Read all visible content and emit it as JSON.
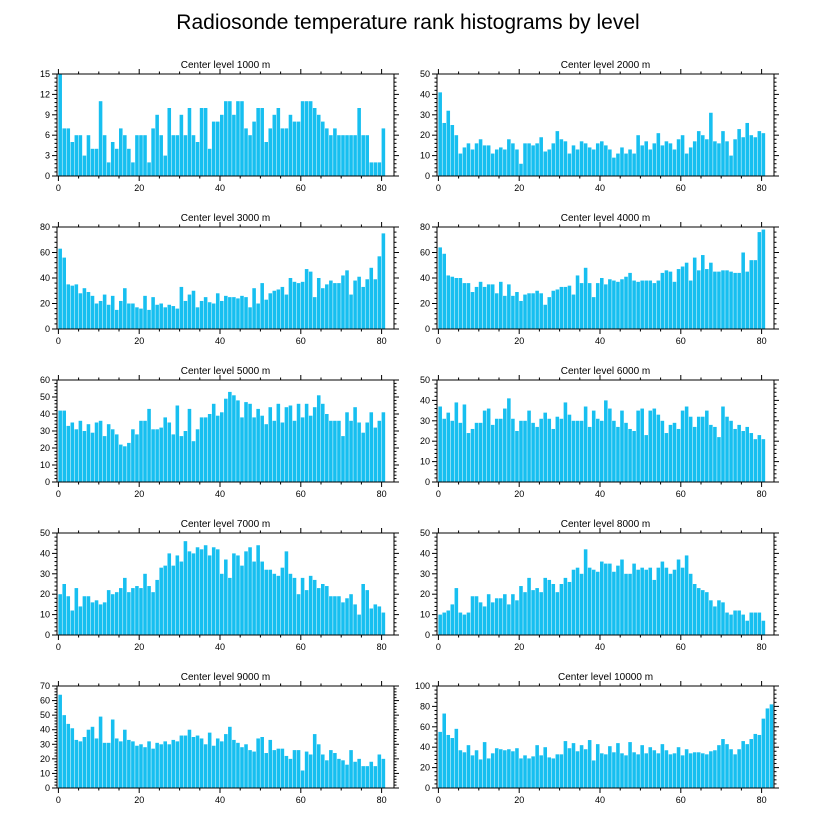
{
  "figure": {
    "title": "Radiosonde temperature rank histograms by level",
    "bar_color": "#17bff0",
    "background": "#ffffff"
  },
  "chart_data": [
    {
      "type": "bar",
      "title": "Center level 1000 m",
      "xlabel": "",
      "ylabel": "",
      "xlim": [
        0,
        82
      ],
      "ylim": [
        0,
        15
      ],
      "xticks": [
        0,
        20,
        40,
        60,
        80
      ],
      "yticks": [
        0,
        3,
        6,
        9,
        12,
        15
      ],
      "values": [
        15,
        7,
        7,
        5,
        6,
        6,
        3,
        6,
        4,
        4,
        11,
        6,
        2,
        5,
        4,
        7,
        6,
        4,
        2,
        6,
        6,
        6,
        2,
        7,
        9,
        6,
        3,
        10,
        6,
        6,
        9,
        6,
        10,
        6,
        5,
        10,
        10,
        4,
        8,
        8,
        9,
        11,
        11,
        9,
        11,
        11,
        7,
        6,
        8,
        10,
        10,
        5,
        7,
        9,
        10,
        7,
        7,
        9,
        8,
        8,
        11,
        11,
        11,
        10,
        9,
        8,
        7,
        6,
        7,
        6,
        6,
        6,
        6,
        6,
        10,
        6,
        6,
        2,
        2,
        2,
        7
      ]
    },
    {
      "type": "bar",
      "title": "Center level 2000 m",
      "xlabel": "",
      "ylabel": "",
      "xlim": [
        0,
        82
      ],
      "ylim": [
        0,
        50
      ],
      "xticks": [
        0,
        20,
        40,
        60,
        80
      ],
      "yticks": [
        0,
        10,
        20,
        30,
        40,
        50
      ],
      "values": [
        41,
        26,
        32,
        25,
        20,
        11,
        14,
        16,
        13,
        16,
        18,
        15,
        15,
        11,
        13,
        14,
        13,
        18,
        16,
        13,
        6,
        16,
        16,
        15,
        16,
        19,
        12,
        13,
        16,
        22,
        18,
        17,
        11,
        15,
        13,
        17,
        16,
        14,
        13,
        16,
        17,
        15,
        13,
        9,
        11,
        14,
        11,
        13,
        11,
        20,
        15,
        17,
        13,
        16,
        21,
        15,
        17,
        16,
        13,
        18,
        20,
        11,
        14,
        17,
        22,
        20,
        18,
        31,
        17,
        16,
        22,
        17,
        10,
        18,
        23,
        19,
        26,
        20,
        19,
        22,
        21
      ]
    },
    {
      "type": "bar",
      "title": "Center level 3000 m",
      "xlabel": "",
      "ylabel": "",
      "xlim": [
        0,
        82
      ],
      "ylim": [
        0,
        80
      ],
      "xticks": [
        0,
        20,
        40,
        60,
        80
      ],
      "yticks": [
        0,
        20,
        40,
        60,
        80
      ],
      "values": [
        63,
        56,
        35,
        34,
        35,
        28,
        32,
        29,
        26,
        20,
        22,
        27,
        19,
        26,
        15,
        22,
        32,
        20,
        20,
        17,
        16,
        26,
        15,
        25,
        19,
        20,
        17,
        19,
        18,
        16,
        33,
        22,
        27,
        30,
        17,
        22,
        25,
        21,
        20,
        28,
        22,
        26,
        25,
        25,
        24,
        26,
        25,
        17,
        32,
        20,
        36,
        23,
        28,
        30,
        31,
        33,
        27,
        40,
        37,
        36,
        37,
        47,
        45,
        25,
        40,
        32,
        35,
        38,
        36,
        36,
        42,
        46,
        27,
        38,
        41,
        33,
        39,
        48,
        39,
        57,
        75
      ]
    },
    {
      "type": "bar",
      "title": "Center level 4000 m",
      "xlabel": "",
      "ylabel": "",
      "xlim": [
        0,
        82
      ],
      "ylim": [
        0,
        80
      ],
      "xticks": [
        0,
        20,
        40,
        60,
        80
      ],
      "yticks": [
        0,
        20,
        40,
        60,
        80
      ],
      "values": [
        64,
        59,
        42,
        41,
        40,
        40,
        36,
        36,
        29,
        33,
        37,
        33,
        35,
        35,
        28,
        37,
        26,
        35,
        26,
        29,
        22,
        27,
        28,
        28,
        30,
        28,
        19,
        25,
        30,
        31,
        33,
        33,
        34,
        27,
        42,
        36,
        48,
        36,
        25,
        36,
        40,
        35,
        39,
        38,
        37,
        39,
        41,
        44,
        38,
        37,
        38,
        38,
        38,
        36,
        38,
        44,
        46,
        45,
        37,
        47,
        49,
        52,
        38,
        56,
        46,
        58,
        47,
        52,
        45,
        45,
        46,
        46,
        45,
        44,
        44,
        60,
        45,
        54,
        54,
        76,
        78
      ]
    },
    {
      "type": "bar",
      "title": "Center level 5000 m",
      "xlabel": "",
      "ylabel": "",
      "xlim": [
        0,
        82
      ],
      "ylim": [
        0,
        60
      ],
      "xticks": [
        0,
        20,
        40,
        60,
        80
      ],
      "yticks": [
        0,
        10,
        20,
        30,
        40,
        50,
        60
      ],
      "values": [
        42,
        42,
        33,
        35,
        31,
        36,
        30,
        34,
        29,
        35,
        36,
        27,
        34,
        31,
        28,
        22,
        21,
        23,
        31,
        28,
        36,
        36,
        43,
        31,
        31,
        32,
        38,
        35,
        28,
        45,
        27,
        30,
        43,
        24,
        31,
        38,
        38,
        40,
        46,
        39,
        41,
        49,
        53,
        51,
        48,
        38,
        47,
        46,
        38,
        43,
        39,
        34,
        44,
        36,
        46,
        35,
        44,
        45,
        36,
        46,
        38,
        46,
        39,
        44,
        51,
        46,
        40,
        36,
        36,
        36,
        27,
        41,
        36,
        44,
        35,
        29,
        35,
        41,
        32,
        36,
        41
      ]
    },
    {
      "type": "bar",
      "title": "Center level 6000 m",
      "xlabel": "",
      "ylabel": "",
      "xlim": [
        0,
        82
      ],
      "ylim": [
        0,
        50
      ],
      "xticks": [
        0,
        20,
        40,
        60,
        80
      ],
      "yticks": [
        0,
        10,
        20,
        30,
        40,
        50
      ],
      "values": [
        37,
        31,
        34,
        30,
        39,
        29,
        38,
        24,
        26,
        29,
        29,
        35,
        36,
        28,
        31,
        31,
        36,
        41,
        31,
        25,
        30,
        30,
        35,
        29,
        27,
        31,
        34,
        31,
        26,
        32,
        31,
        39,
        33,
        30,
        30,
        30,
        37,
        27,
        35,
        31,
        30,
        40,
        36,
        30,
        27,
        35,
        29,
        26,
        25,
        35,
        36,
        23,
        35,
        36,
        33,
        30,
        24,
        28,
        29,
        26,
        35,
        37,
        32,
        27,
        32,
        32,
        35,
        28,
        27,
        22,
        37,
        32,
        30,
        26,
        28,
        25,
        27,
        24,
        21,
        23,
        21
      ]
    },
    {
      "type": "bar",
      "title": "Center level 7000 m",
      "xlabel": "",
      "ylabel": "",
      "xlim": [
        0,
        82
      ],
      "ylim": [
        0,
        50
      ],
      "xticks": [
        0,
        20,
        40,
        60,
        80
      ],
      "yticks": [
        0,
        10,
        20,
        30,
        40,
        50
      ],
      "values": [
        20,
        25,
        19,
        12,
        23,
        14,
        19,
        19,
        16,
        17,
        15,
        16,
        22,
        20,
        21,
        23,
        28,
        21,
        23,
        24,
        23,
        30,
        24,
        21,
        27,
        33,
        34,
        40,
        34,
        39,
        36,
        46,
        41,
        40,
        43,
        42,
        44,
        39,
        43,
        42,
        30,
        37,
        28,
        40,
        39,
        34,
        41,
        43,
        36,
        44,
        36,
        32,
        32,
        30,
        29,
        33,
        41,
        30,
        28,
        20,
        28,
        22,
        29,
        27,
        23,
        25,
        24,
        19,
        19,
        19,
        16,
        18,
        20,
        15,
        10,
        25,
        22,
        13,
        15,
        14,
        11
      ]
    },
    {
      "type": "bar",
      "title": "Center level 8000 m",
      "xlabel": "",
      "ylabel": "",
      "xlim": [
        0,
        82
      ],
      "ylim": [
        0,
        50
      ],
      "xticks": [
        0,
        20,
        40,
        60,
        80
      ],
      "yticks": [
        0,
        10,
        20,
        30,
        40,
        50
      ],
      "values": [
        10,
        11,
        12,
        15,
        23,
        11,
        10,
        11,
        19,
        19,
        16,
        14,
        20,
        16,
        18,
        18,
        20,
        15,
        20,
        17,
        24,
        21,
        28,
        22,
        23,
        21,
        28,
        27,
        25,
        21,
        25,
        28,
        26,
        32,
        33,
        30,
        42,
        33,
        32,
        31,
        36,
        35,
        35,
        31,
        34,
        37,
        30,
        30,
        35,
        32,
        33,
        32,
        33,
        27,
        33,
        36,
        33,
        30,
        32,
        37,
        33,
        39,
        30,
        25,
        23,
        22,
        21,
        17,
        14,
        17,
        16,
        11,
        10,
        12,
        12,
        10,
        7,
        11,
        11,
        11,
        7
      ]
    },
    {
      "type": "bar",
      "title": "Center level 9000 m",
      "xlabel": "",
      "ylabel": "",
      "xlim": [
        0,
        82
      ],
      "ylim": [
        0,
        70
      ],
      "xticks": [
        0,
        20,
        40,
        60,
        80
      ],
      "yticks": [
        0,
        10,
        20,
        30,
        40,
        50,
        60,
        70
      ],
      "values": [
        64,
        50,
        44,
        41,
        33,
        32,
        35,
        40,
        42,
        34,
        49,
        31,
        31,
        47,
        34,
        32,
        40,
        33,
        32,
        29,
        30,
        28,
        32,
        27,
        31,
        30,
        32,
        30,
        33,
        32,
        36,
        36,
        40,
        35,
        36,
        34,
        30,
        38,
        29,
        34,
        32,
        37,
        42,
        33,
        31,
        28,
        30,
        26,
        25,
        34,
        35,
        24,
        33,
        26,
        27,
        27,
        22,
        20,
        26,
        26,
        12,
        25,
        23,
        37,
        30,
        23,
        19,
        26,
        24,
        20,
        19,
        16,
        26,
        18,
        20,
        15,
        15,
        18,
        15,
        23,
        20
      ]
    },
    {
      "type": "bar",
      "title": "Center level 10000 m",
      "xlabel": "",
      "ylabel": "",
      "xlim": [
        0,
        82
      ],
      "ylim": [
        0,
        100
      ],
      "xticks": [
        0,
        20,
        40,
        60,
        80
      ],
      "yticks": [
        0,
        20,
        40,
        60,
        80,
        100
      ],
      "values": [
        55,
        73,
        52,
        49,
        58,
        37,
        35,
        42,
        32,
        37,
        28,
        45,
        29,
        34,
        39,
        38,
        37,
        38,
        36,
        39,
        29,
        32,
        29,
        31,
        42,
        32,
        40,
        30,
        29,
        33,
        33,
        46,
        39,
        44,
        36,
        42,
        38,
        47,
        27,
        43,
        34,
        33,
        41,
        35,
        44,
        34,
        32,
        45,
        35,
        33,
        42,
        34,
        40,
        37,
        34,
        43,
        37,
        33,
        34,
        40,
        32,
        38,
        34,
        35,
        35,
        34,
        33,
        36,
        37,
        42,
        48,
        43,
        38,
        33,
        38,
        46,
        43,
        48,
        53,
        52,
        68,
        78,
        82
      ]
    }
  ]
}
